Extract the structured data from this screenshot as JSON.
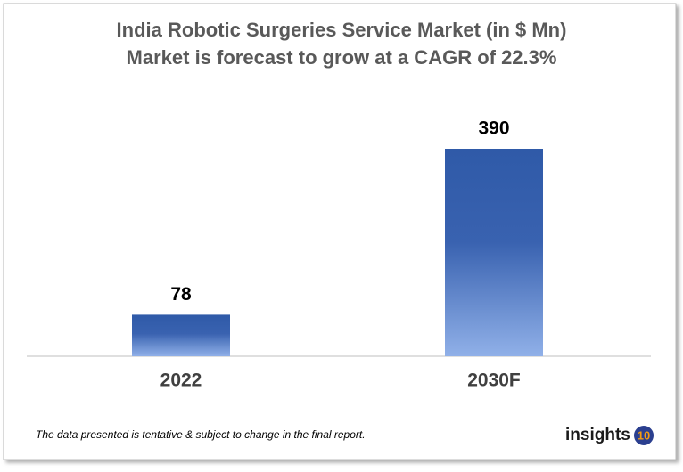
{
  "chart_data": {
    "type": "bar",
    "title": "India Robotic Surgeries Service Market (in $ Mn)",
    "subtitle": "Market is forecast to grow at a CAGR of 22.3%",
    "categories": [
      "2022",
      "2030F"
    ],
    "values": [
      78,
      390
    ],
    "color": "#2f5aa8"
  },
  "footnote": "The data presented is tentative & subject to change in the final report.",
  "logo": {
    "text": "insights",
    "badge": "10"
  }
}
